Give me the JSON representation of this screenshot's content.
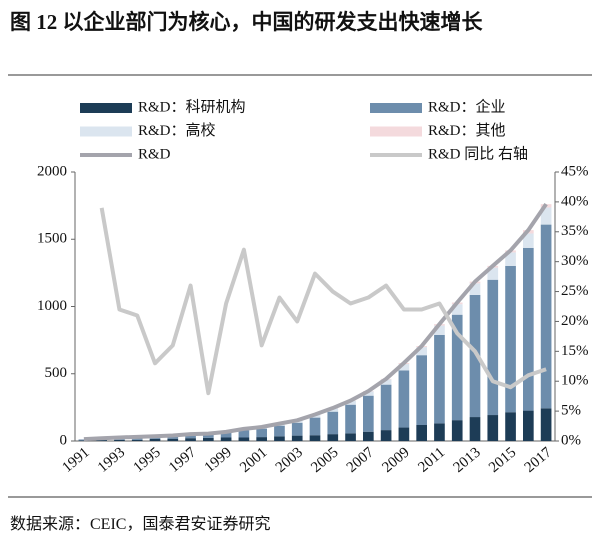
{
  "chart_data": {
    "type": "bar",
    "stacked": true,
    "title": "图 12 以企业部门为核心，中国的研发支出快速增长",
    "source": "数据来源：CEIC，国泰君安证券研究",
    "categories": [
      "1991",
      null,
      "1993",
      null,
      "1995",
      null,
      "1997",
      null,
      "1999",
      null,
      "2001",
      null,
      "2003",
      null,
      "2005",
      null,
      "2007",
      null,
      "2009",
      null,
      "2011",
      null,
      "2013",
      null,
      "2015",
      null,
      "2017"
    ],
    "ylim": [
      0,
      2000
    ],
    "yticks": [
      0,
      500,
      1000,
      1500,
      2000
    ],
    "y2lim": [
      0,
      45
    ],
    "y2ticks": [
      {
        "value": 0,
        "label": "0%"
      },
      {
        "value": 5,
        "label": "5%"
      },
      {
        "value": 10,
        "label": "10%"
      },
      {
        "value": 15,
        "label": "15%"
      },
      {
        "value": 20,
        "label": "20%"
      },
      {
        "value": 25,
        "label": "25%"
      },
      {
        "value": 30,
        "label": "30%"
      },
      {
        "value": 35,
        "label": "35%"
      },
      {
        "value": 40,
        "label": "40%"
      },
      {
        "value": 45,
        "label": "45%"
      }
    ],
    "series": [
      {
        "name": "R&D：科研机构",
        "color": "#1d3c56",
        "values": [
          5,
          7,
          8,
          9,
          15,
          17,
          21,
          23,
          26,
          26,
          29,
          35,
          40,
          43,
          51,
          57,
          69,
          81,
          100,
          119,
          131,
          155,
          178,
          193,
          214,
          226,
          243
        ]
      },
      {
        "name": "R&D：企业",
        "color": "#6d8dac",
        "values": [
          6,
          9,
          13,
          16,
          15,
          18,
          22,
          24,
          34,
          54,
          63,
          79,
          96,
          131,
          167,
          213,
          268,
          338,
          425,
          519,
          658,
          784,
          908,
          1006,
          1088,
          1210,
          1366
        ]
      },
      {
        "name": "R&D：高校",
        "color": "#dbe5ef",
        "values": [
          2,
          3,
          4,
          4,
          4,
          5,
          7,
          6,
          6,
          8,
          10,
          13,
          16,
          20,
          24,
          28,
          31,
          39,
          47,
          60,
          69,
          78,
          86,
          90,
          100,
          107,
          127
        ]
      },
      {
        "name": "R&D：其他",
        "color": "#f4dadd",
        "values": [
          1,
          1,
          1,
          2,
          1,
          1,
          1,
          2,
          2,
          2,
          2,
          2,
          2,
          3,
          3,
          2,
          3,
          4,
          8,
          8,
          11,
          13,
          13,
          13,
          15,
          25,
          25
        ]
      },
      {
        "name": "R&D",
        "type": "line",
        "color": "#a4a4ac",
        "values": [
          14,
          20,
          26,
          31,
          35,
          41,
          51,
          55,
          68,
          90,
          104,
          129,
          154,
          197,
          245,
          300,
          371,
          462,
          580,
          706,
          869,
          1030,
          1185,
          1302,
          1417,
          1568,
          1761
        ]
      },
      {
        "name": "R&D 同比 右轴",
        "type": "line",
        "axis": "y2",
        "color": "#c9c9c9",
        "values": [
          null,
          39,
          22,
          21,
          13,
          16,
          26,
          8,
          23,
          32,
          16,
          24,
          20,
          28,
          25,
          23,
          24,
          26,
          22,
          22,
          23,
          18,
          15,
          10,
          9,
          11,
          12
        ]
      }
    ]
  }
}
